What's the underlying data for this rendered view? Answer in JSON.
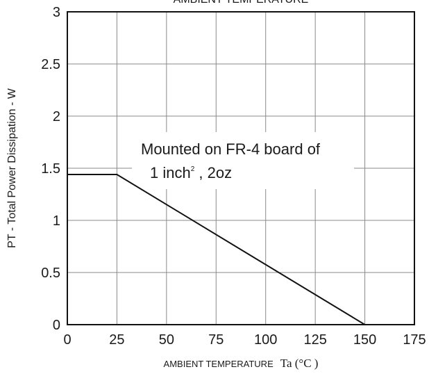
{
  "chart_data": {
    "type": "line",
    "title": "AMBIENT TEMPERATURE",
    "xlabel": "AMBIENT TEMPERATURE",
    "xlabel_symbol": "Ta (°C )",
    "ylabel": "PT - Total Power Dissipation - W",
    "xlim": [
      0,
      175
    ],
    "ylim": [
      0,
      3
    ],
    "x_ticks": [
      0,
      25,
      50,
      75,
      100,
      125,
      150,
      175
    ],
    "x_tick_labels": [
      "0",
      "25",
      "50",
      "75",
      "100",
      "125",
      "150",
      "175"
    ],
    "y_ticks": [
      0,
      0.5,
      1,
      1.5,
      2,
      2.5,
      3
    ],
    "y_tick_labels": [
      "0",
      "0.5",
      "1",
      "1.5",
      "2",
      "2.5",
      "3"
    ],
    "grid": true,
    "series": [
      {
        "x": [
          0,
          25,
          150
        ],
        "y": [
          1.44,
          1.44,
          0
        ]
      }
    ],
    "annotation": {
      "line1": "Mounted on FR-4 board of",
      "line2_pre": "1 inch",
      "line2_sup": "2",
      "line2_post": " , 2oz"
    }
  }
}
